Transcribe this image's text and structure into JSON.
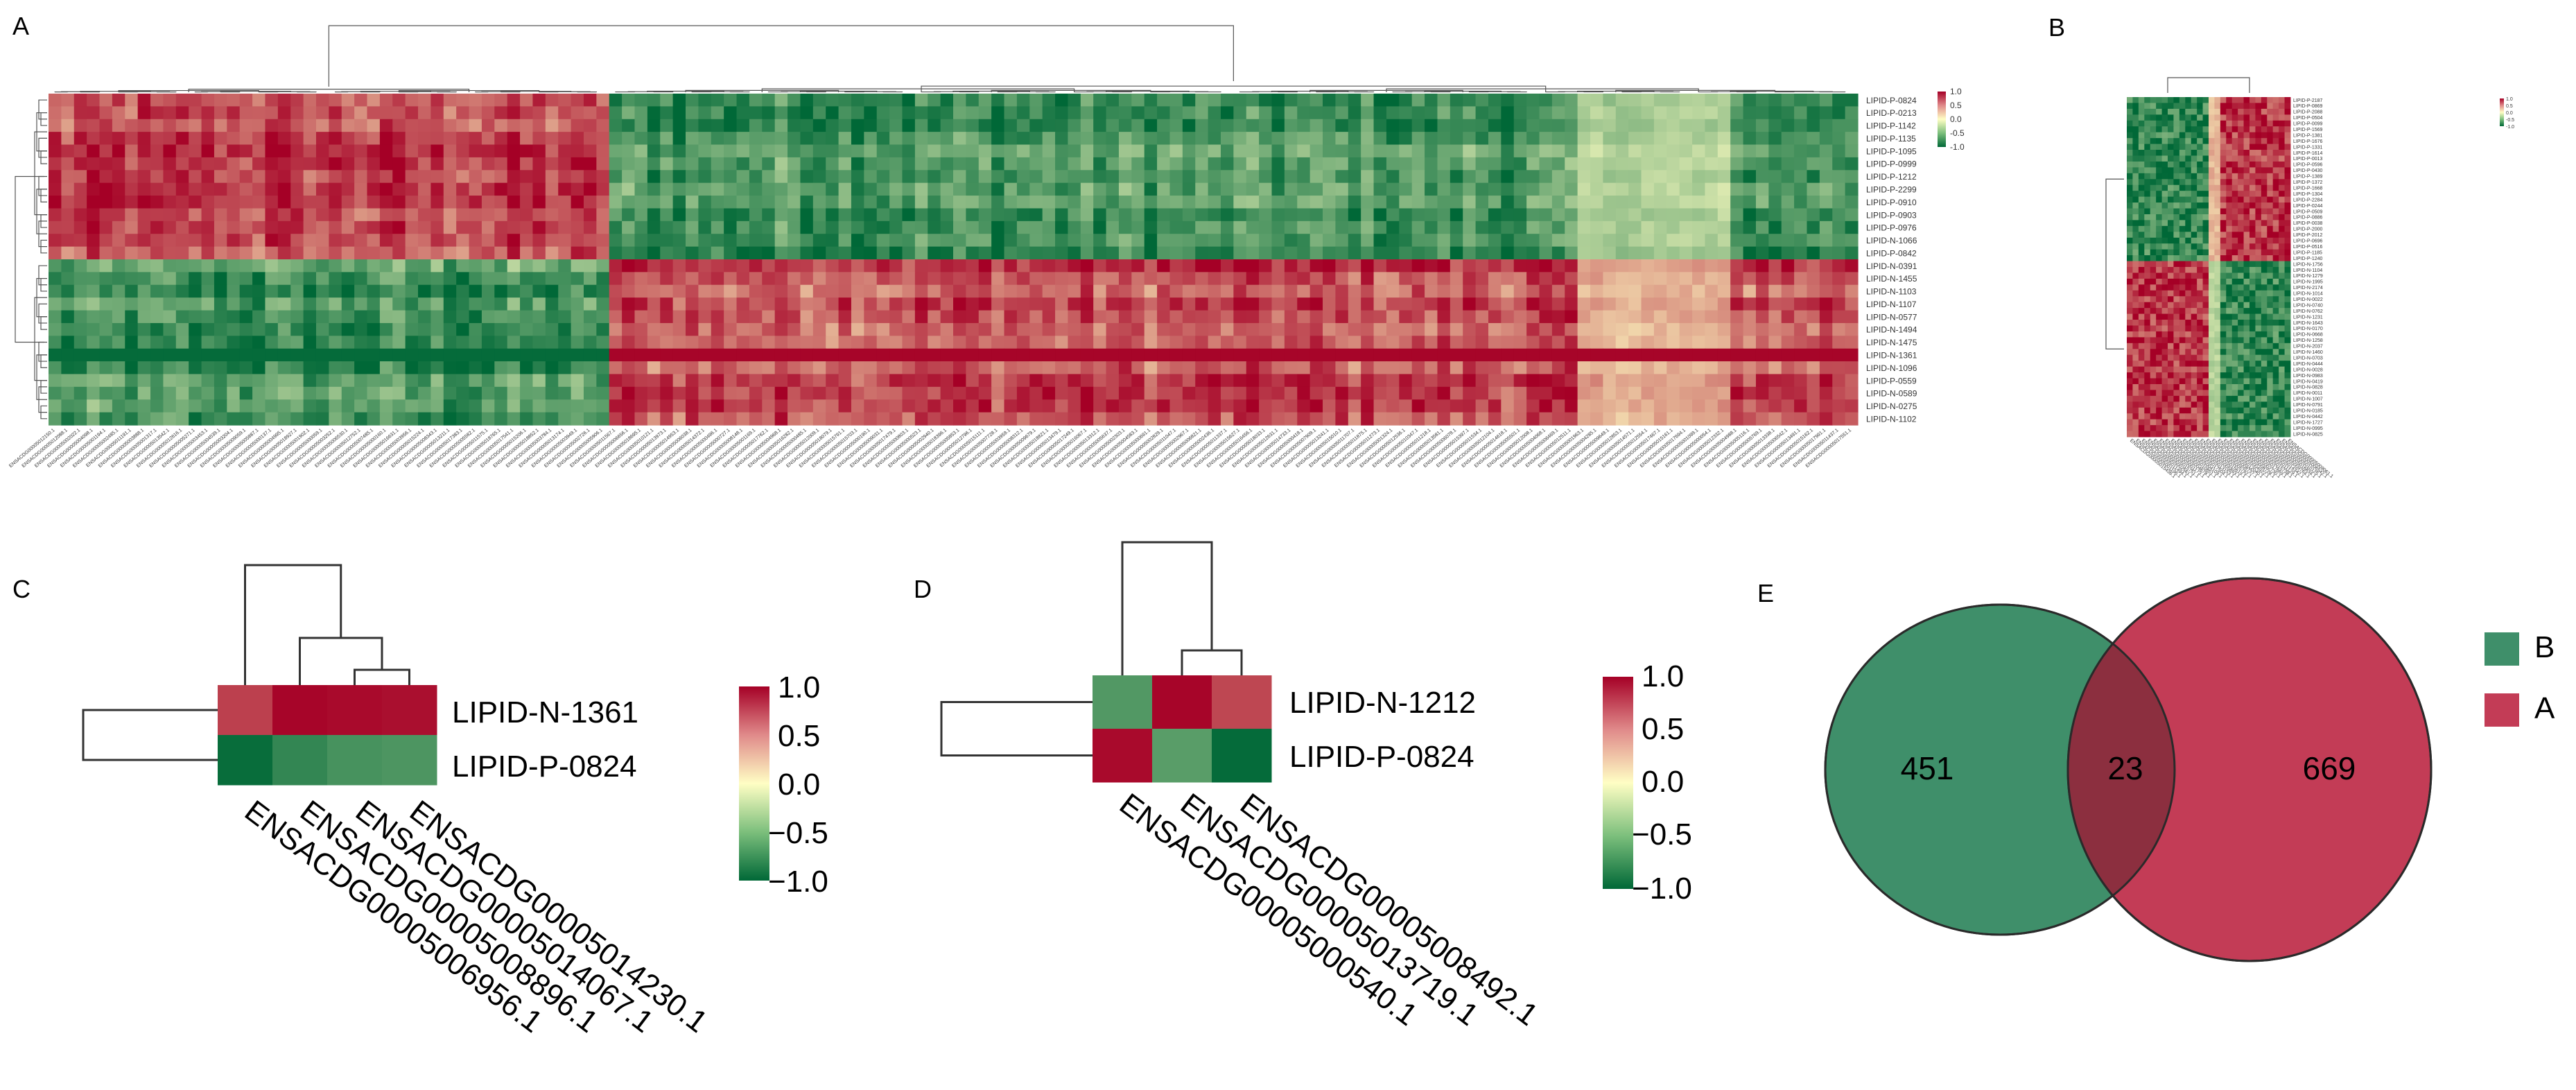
{
  "colors": {
    "low": "#006837",
    "mid": "#fffec4",
    "high": "#a50026",
    "venn_b": "#3f8f6a",
    "venn_a": "#c33c56",
    "venn_overlap": "#8c2f3f"
  },
  "panels": {
    "a": {
      "label": "A"
    },
    "b": {
      "label": "B"
    },
    "c": {
      "label": "C"
    },
    "d": {
      "label": "D"
    },
    "e": {
      "label": "E"
    }
  },
  "chart_data": [
    {
      "id": "panel-a",
      "type": "heatmap",
      "title": "",
      "n_cols": 142,
      "split_col": 44,
      "col_clusters": [
        {
          "start": 0,
          "end": 44,
          "sign": 1
        },
        {
          "start": 44,
          "end": 142,
          "sign": -1
        }
      ],
      "rows": [
        "LIPID-P-0824",
        "LIPID-P-0213",
        "LIPID-P-1142",
        "LIPID-P-1135",
        "LIPID-P-1095",
        "LIPID-P-0999",
        "LIPID-P-1212",
        "LIPID-P-2299",
        "LIPID-P-0910",
        "LIPID-P-0903",
        "LIPID-P-0976",
        "LIPID-N-1066",
        "LIPID-P-0842",
        "LIPID-N-0391",
        "LIPID-N-1455",
        "LIPID-N-1103",
        "LIPID-N-1107",
        "LIPID-N-0577",
        "LIPID-N-1494",
        "LIPID-N-1475",
        "LIPID-N-1361",
        "LIPID-N-1096",
        "LIPID-P-0559",
        "LIPID-N-0589",
        "LIPID-N-0275",
        "LIPID-N-1102"
      ],
      "row_groups": [
        1,
        1,
        1,
        1,
        1,
        1,
        1,
        1,
        1,
        1,
        1,
        1,
        1,
        -1,
        -1,
        -1,
        -1,
        -1,
        -1,
        -1,
        -1,
        -1,
        -1,
        -1,
        -1,
        -1
      ],
      "col_label_prefix": "ENSACDG0000",
      "legend_ticks": [
        "1.0",
        "0.5",
        "0.0",
        "-0.5",
        "-1.0"
      ],
      "value_range": [
        -1.0,
        1.0
      ]
    },
    {
      "id": "panel-b",
      "type": "heatmap",
      "title": "",
      "n_cols": 28,
      "split_col": 14,
      "n_rows": 58,
      "split_row": 28,
      "col_label_prefix": "ENSACDG0000",
      "row_label_prefix": "LIPID-",
      "legend_ticks": [
        "1.0",
        "0.5",
        "0.0",
        "-0.5",
        "-1.0"
      ],
      "value_range": [
        -1.0,
        1.0
      ]
    },
    {
      "id": "panel-c",
      "type": "heatmap",
      "rows": [
        "LIPID-N-1361",
        "LIPID-P-0824"
      ],
      "columns": [
        "ENSACDG00005006956.1",
        "ENSACDG00005008896.1",
        "ENSACDG00005014067.1",
        "ENSACDG00005014230.1"
      ],
      "values": [
        [
          0.75,
          0.98,
          0.96,
          0.94
        ],
        [
          -0.97,
          -0.8,
          -0.72,
          -0.7
        ]
      ],
      "legend_ticks": [
        "1.0",
        "0.5",
        "0.0",
        "−0.5",
        "−1.0"
      ],
      "value_range": [
        -1.0,
        1.0
      ]
    },
    {
      "id": "panel-d",
      "type": "heatmap",
      "rows": [
        "LIPID-N-1212",
        "LIPID-P-0824"
      ],
      "columns": [
        "ENSACDG00005000540.1",
        "ENSACDG00005013719.1",
        "ENSACDG00005008492.1"
      ],
      "values": [
        [
          -0.68,
          0.98,
          0.72
        ],
        [
          0.96,
          -0.65,
          -0.98
        ]
      ],
      "legend_ticks": [
        "1.0",
        "0.5",
        "0.0",
        "−0.5",
        "−1.0"
      ],
      "value_range": [
        -1.0,
        1.0
      ]
    },
    {
      "id": "panel-e",
      "type": "venn",
      "sets": [
        {
          "name": "B",
          "only": "451"
        },
        {
          "name": "A",
          "only": "669"
        }
      ],
      "overlap": "23",
      "legend": [
        "B",
        "A"
      ]
    }
  ]
}
